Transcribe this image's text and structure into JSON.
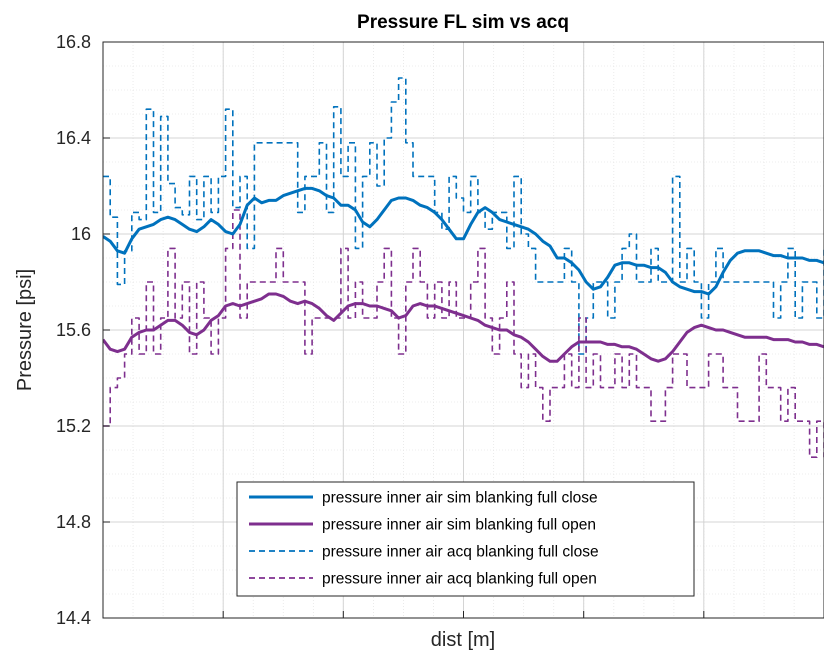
{
  "chart_data": {
    "type": "line",
    "title": "Pressure FL sim vs acq",
    "xlabel": "dist [m]",
    "ylabel": "Pressure [psi]",
    "ylim": [
      14.4,
      16.8
    ],
    "xlim": [
      0,
      100
    ],
    "yticks": [
      14.4,
      14.8,
      15.2,
      15.6,
      16.0,
      16.4,
      16.8
    ],
    "ytick_labels": [
      "14.4",
      "14.8",
      "15.2",
      "15.6",
      "16",
      "16.4",
      "16.8"
    ],
    "xticks": [
      0,
      16.67,
      33.33,
      50,
      66.67,
      83.33,
      100
    ],
    "grid": "major and minor",
    "legend_position": "bottom-center",
    "series": [
      {
        "name": "pressure inner air sim blanking full close",
        "style": "solid",
        "color": "#0072BD",
        "x": [
          0,
          1,
          2,
          3,
          4,
          5,
          6,
          7,
          8,
          9,
          10,
          11,
          12,
          13,
          14,
          15,
          16,
          17,
          18,
          19,
          20,
          21,
          22,
          23,
          24,
          25,
          26,
          27,
          28,
          29,
          30,
          31,
          32,
          33,
          34,
          35,
          36,
          37,
          38,
          39,
          40,
          41,
          42,
          43,
          44,
          45,
          46,
          47,
          48,
          49,
          50,
          51,
          52,
          53,
          54,
          55,
          56,
          57,
          58,
          59,
          60,
          61,
          62,
          63,
          64,
          65,
          66,
          67,
          68,
          69,
          70,
          71,
          72,
          73,
          74,
          75,
          76,
          77,
          78,
          79,
          80,
          81,
          82,
          83,
          84,
          85,
          86,
          87,
          88,
          89,
          90,
          91,
          92,
          93,
          94,
          95,
          96,
          97,
          98,
          99,
          100
        ],
        "y": [
          15.99,
          15.97,
          15.93,
          15.92,
          15.98,
          16.02,
          16.03,
          16.04,
          16.06,
          16.07,
          16.06,
          16.04,
          16.02,
          16.01,
          16.03,
          16.06,
          16.04,
          16.01,
          16.0,
          16.04,
          16.12,
          16.15,
          16.13,
          16.14,
          16.14,
          16.16,
          16.17,
          16.18,
          16.19,
          16.19,
          16.18,
          16.16,
          16.15,
          16.12,
          16.12,
          16.1,
          16.05,
          16.03,
          16.06,
          16.1,
          16.14,
          16.15,
          16.15,
          16.14,
          16.12,
          16.11,
          16.09,
          16.06,
          16.02,
          15.98,
          15.98,
          16.04,
          16.09,
          16.11,
          16.09,
          16.06,
          16.05,
          16.04,
          16.03,
          16.02,
          16.0,
          15.97,
          15.95,
          15.9,
          15.9,
          15.88,
          15.85,
          15.8,
          15.77,
          15.78,
          15.82,
          15.87,
          15.88,
          15.88,
          15.87,
          15.87,
          15.86,
          15.86,
          15.84,
          15.8,
          15.78,
          15.77,
          15.76,
          15.76,
          15.75,
          15.78,
          15.84,
          15.89,
          15.92,
          15.93,
          15.93,
          15.93,
          15.92,
          15.91,
          15.91,
          15.9,
          15.9,
          15.9,
          15.89,
          15.89,
          15.88
        ]
      },
      {
        "name": "pressure inner air sim blanking full open",
        "style": "solid",
        "color": "#7E2F8E",
        "x": [
          0,
          1,
          2,
          3,
          4,
          5,
          6,
          7,
          8,
          9,
          10,
          11,
          12,
          13,
          14,
          15,
          16,
          17,
          18,
          19,
          20,
          21,
          22,
          23,
          24,
          25,
          26,
          27,
          28,
          29,
          30,
          31,
          32,
          33,
          34,
          35,
          36,
          37,
          38,
          39,
          40,
          41,
          42,
          43,
          44,
          45,
          46,
          47,
          48,
          49,
          50,
          51,
          52,
          53,
          54,
          55,
          56,
          57,
          58,
          59,
          60,
          61,
          62,
          63,
          64,
          65,
          66,
          67,
          68,
          69,
          70,
          71,
          72,
          73,
          74,
          75,
          76,
          77,
          78,
          79,
          80,
          81,
          82,
          83,
          84,
          85,
          86,
          87,
          88,
          89,
          90,
          91,
          92,
          93,
          94,
          95,
          96,
          97,
          98,
          99,
          100
        ],
        "y": [
          15.56,
          15.52,
          15.51,
          15.52,
          15.57,
          15.59,
          15.6,
          15.6,
          15.62,
          15.64,
          15.64,
          15.62,
          15.59,
          15.58,
          15.6,
          15.64,
          15.66,
          15.7,
          15.71,
          15.7,
          15.71,
          15.72,
          15.73,
          15.75,
          15.75,
          15.74,
          15.72,
          15.71,
          15.72,
          15.71,
          15.69,
          15.66,
          15.64,
          15.67,
          15.7,
          15.71,
          15.71,
          15.7,
          15.7,
          15.69,
          15.68,
          15.65,
          15.66,
          15.7,
          15.71,
          15.7,
          15.7,
          15.69,
          15.68,
          15.67,
          15.66,
          15.65,
          15.64,
          15.62,
          15.61,
          15.6,
          15.6,
          15.58,
          15.57,
          15.55,
          15.52,
          15.49,
          15.47,
          15.47,
          15.5,
          15.53,
          15.55,
          15.55,
          15.55,
          15.55,
          15.54,
          15.54,
          15.53,
          15.53,
          15.52,
          15.5,
          15.48,
          15.47,
          15.48,
          15.51,
          15.55,
          15.59,
          15.61,
          15.62,
          15.61,
          15.6,
          15.6,
          15.59,
          15.58,
          15.57,
          15.57,
          15.57,
          15.57,
          15.56,
          15.56,
          15.56,
          15.55,
          15.55,
          15.54,
          15.54,
          15.53
        ]
      },
      {
        "name": "pressure inner air acq blanking full close",
        "style": "dashed",
        "color": "#0072BD",
        "x": [
          0,
          1,
          2,
          3,
          4,
          5,
          6,
          7,
          8,
          9,
          10,
          11,
          12,
          13,
          14,
          15,
          16,
          17,
          18,
          19,
          20,
          21,
          22,
          23,
          24,
          25,
          26,
          27,
          28,
          29,
          30,
          31,
          32,
          33,
          34,
          35,
          36,
          37,
          38,
          39,
          40,
          41,
          42,
          43,
          44,
          45,
          46,
          47,
          48,
          49,
          50,
          51,
          52,
          53,
          54,
          55,
          56,
          57,
          58,
          59,
          60,
          61,
          62,
          63,
          64,
          65,
          66,
          67,
          68,
          69,
          70,
          71,
          72,
          73,
          74,
          75,
          76,
          77,
          78,
          79,
          80,
          81,
          82,
          83,
          84,
          85,
          86,
          87,
          88,
          89,
          90,
          91,
          92,
          93,
          94,
          95,
          96,
          97,
          98,
          99,
          100
        ],
        "y": [
          16.24,
          16.07,
          15.79,
          15.93,
          16.09,
          16.06,
          16.52,
          16.09,
          16.49,
          16.21,
          16.11,
          16.08,
          16.24,
          16.06,
          16.24,
          16.09,
          16.24,
          16.52,
          16.11,
          16.24,
          15.94,
          16.38,
          16.38,
          16.38,
          16.38,
          16.38,
          16.38,
          16.09,
          16.24,
          16.24,
          16.38,
          16.09,
          16.53,
          16.24,
          16.38,
          15.94,
          16.24,
          16.38,
          16.2,
          16.4,
          16.55,
          16.65,
          16.38,
          16.24,
          16.24,
          16.24,
          16.09,
          16.02,
          16.24,
          16.15,
          16.09,
          16.24,
          16.09,
          16.02,
          16.09,
          16.09,
          15.94,
          16.24,
          16.0,
          15.94,
          15.8,
          15.8,
          15.8,
          15.8,
          15.94,
          15.8,
          15.5,
          15.65,
          15.8,
          15.8,
          15.65,
          15.8,
          15.94,
          16.0,
          15.8,
          15.8,
          15.94,
          15.8,
          15.8,
          16.24,
          15.8,
          15.94,
          15.8,
          15.65,
          15.8,
          15.94,
          15.8,
          15.8,
          15.8,
          15.8,
          15.8,
          15.8,
          15.8,
          15.65,
          15.8,
          15.94,
          15.65,
          15.8,
          15.8,
          15.65,
          15.94
        ]
      },
      {
        "name": "pressure inner air acq blanking full open",
        "style": "dashed",
        "color": "#7E2F8E",
        "x": [
          0,
          1,
          2,
          3,
          4,
          5,
          6,
          7,
          8,
          9,
          10,
          11,
          12,
          13,
          14,
          15,
          16,
          17,
          18,
          19,
          20,
          21,
          22,
          23,
          24,
          25,
          26,
          27,
          28,
          29,
          30,
          31,
          32,
          33,
          34,
          35,
          36,
          37,
          38,
          39,
          40,
          41,
          42,
          43,
          44,
          45,
          46,
          47,
          48,
          49,
          50,
          51,
          52,
          53,
          54,
          55,
          56,
          57,
          58,
          59,
          60,
          61,
          62,
          63,
          64,
          65,
          66,
          67,
          68,
          69,
          70,
          71,
          72,
          73,
          74,
          75,
          76,
          77,
          78,
          79,
          80,
          81,
          82,
          83,
          84,
          85,
          86,
          87,
          88,
          89,
          90,
          91,
          92,
          93,
          94,
          95,
          96,
          97,
          98,
          99,
          100
        ],
        "y": [
          15.2,
          15.36,
          15.4,
          15.5,
          15.65,
          15.5,
          15.8,
          15.5,
          15.65,
          15.94,
          15.65,
          15.8,
          15.5,
          15.8,
          15.65,
          15.5,
          15.65,
          15.94,
          16.1,
          15.65,
          15.8,
          15.8,
          15.8,
          15.8,
          15.94,
          15.8,
          15.8,
          15.8,
          15.5,
          15.65,
          15.65,
          15.65,
          15.65,
          15.94,
          15.65,
          15.8,
          15.65,
          15.65,
          15.8,
          15.94,
          15.65,
          15.5,
          15.8,
          15.94,
          15.8,
          15.65,
          15.8,
          15.65,
          15.8,
          15.65,
          15.65,
          15.8,
          15.94,
          15.65,
          15.5,
          15.65,
          15.8,
          15.5,
          15.36,
          15.5,
          15.36,
          15.22,
          15.36,
          15.36,
          15.5,
          15.36,
          15.65,
          15.36,
          15.5,
          15.36,
          15.36,
          15.5,
          15.36,
          15.5,
          15.36,
          15.36,
          15.22,
          15.22,
          15.36,
          15.5,
          15.5,
          15.36,
          15.36,
          15.36,
          15.5,
          15.5,
          15.36,
          15.36,
          15.22,
          15.22,
          15.22,
          15.5,
          15.36,
          15.36,
          15.22,
          15.36,
          15.22,
          15.22,
          15.07,
          15.22,
          15.07
        ]
      }
    ]
  }
}
